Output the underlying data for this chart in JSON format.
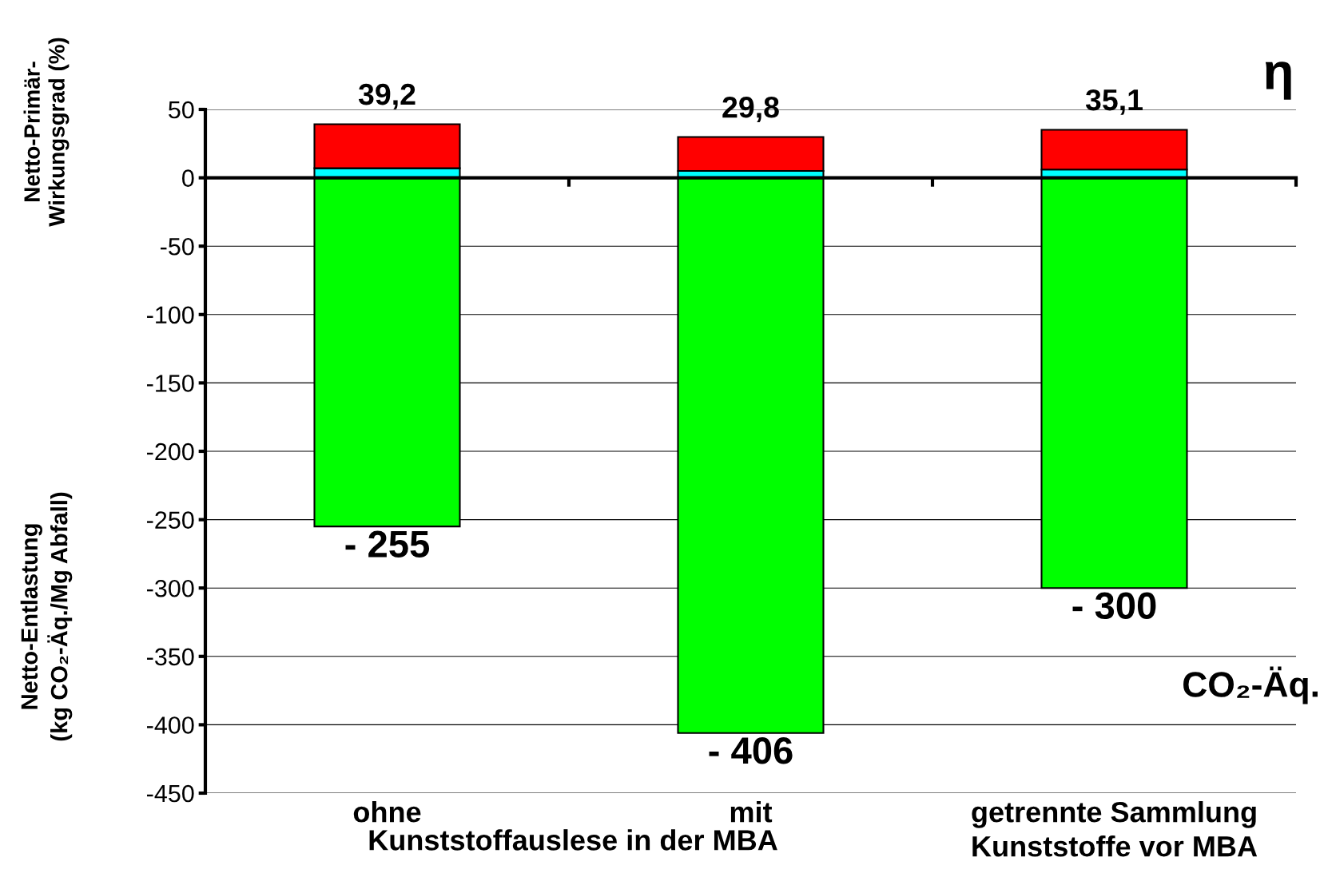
{
  "chart_data": {
    "type": "bar",
    "stacked": true,
    "categories": [
      "ohne",
      "mit",
      "getrennte Sammlung\nKunststoffe vor MBA"
    ],
    "series": [
      {
        "color": "#00ff00",
        "values": [
          -255,
          -406,
          -300
        ],
        "value_labels": [
          "- 255",
          "- 406",
          "- 300"
        ]
      },
      {
        "color": "#00ffff",
        "values": [
          7,
          5,
          6
        ]
      },
      {
        "color": "#ff0000",
        "values": [
          32.2,
          24.8,
          29.1
        ]
      }
    ],
    "ylabel": "Netto-Entlastung\n(kg CO₂-Äq./Mg Abfall)",
    "annotations": [
      "Netto-Primär-\nWirkungsgrad (%)",
      "η",
      "CO₂-Äq.",
      "Kunststoffauslese in der MBA",
      {
        "text": "39,2",
        "x": "ohne",
        "y": 39.2
      },
      {
        "text": "29,8",
        "x": "mit",
        "y": 29.8
      },
      {
        "text": "35,1",
        "x": "getrennte Sammlung\nKunststoffe vor MBA",
        "y": 35.1
      }
    ],
    "ylim": [
      -450,
      50
    ],
    "yticks": [
      -450,
      -400,
      -350,
      -300,
      -250,
      -200,
      -150,
      -100,
      -50,
      0,
      50
    ],
    "grid": "y",
    "legend": false
  }
}
